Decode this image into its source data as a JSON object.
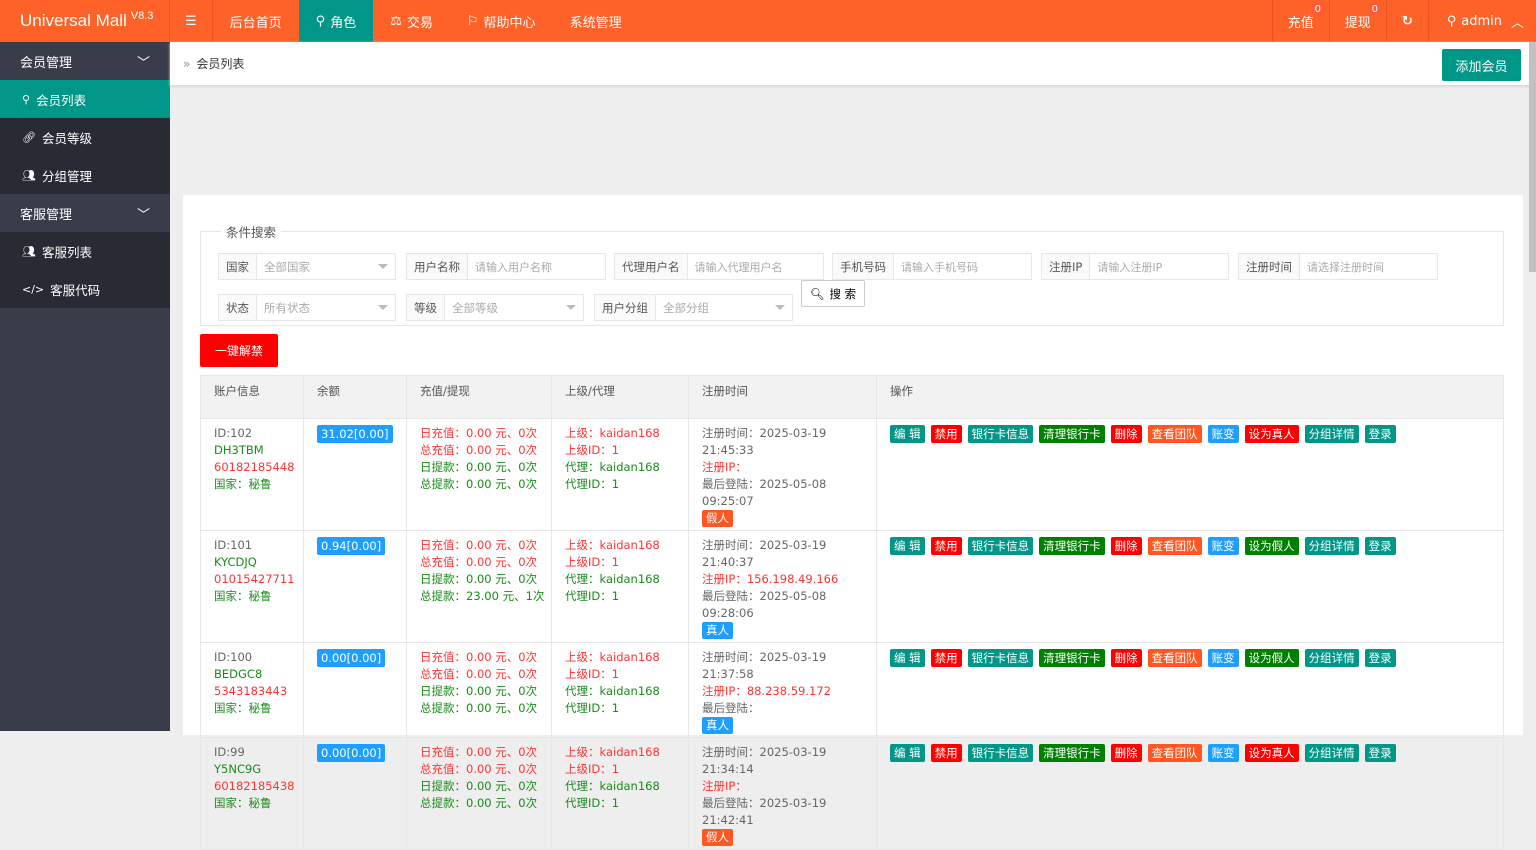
{
  "app": {
    "title": "Universal Mall",
    "version": "V8.3"
  },
  "nav": [
    {
      "label": "后台首页",
      "icon": ""
    },
    {
      "label": "角色",
      "icon": "user-icon",
      "active": true
    },
    {
      "label": "交易",
      "icon": "scale-icon"
    },
    {
      "label": "帮助中心",
      "icon": "flag-icon"
    },
    {
      "label": "系统管理",
      "icon": ""
    }
  ],
  "topright": {
    "recharge": "充值",
    "recharge_count": "0",
    "withdraw": "提现",
    "withdraw_count": "0",
    "user": "admin"
  },
  "sidebar": {
    "groups": [
      {
        "label": "会员管理",
        "items": [
          {
            "label": "会员列表",
            "icon": "user-icon",
            "active": true
          },
          {
            "label": "会员等级",
            "icon": "link-icon"
          },
          {
            "label": "分组管理",
            "icon": "users-icon"
          }
        ]
      },
      {
        "label": "客服管理",
        "items": [
          {
            "label": "客服列表",
            "icon": "users-icon"
          },
          {
            "label": "客服代码",
            "icon": "code-icon"
          }
        ]
      }
    ]
  },
  "breadcrumb": "会员列表",
  "add_member": "添加会员",
  "search": {
    "legend": "条件搜索",
    "fields": [
      {
        "label": "国家",
        "value": "全部国家",
        "type": "select"
      },
      {
        "label": "用户名称",
        "placeholder": "请输入用户名称"
      },
      {
        "label": "代理用户名",
        "placeholder": "请输入代理用户名"
      },
      {
        "label": "手机号码",
        "placeholder": "请输入手机号码"
      },
      {
        "label": "注册IP",
        "placeholder": "请输入注册IP"
      },
      {
        "label": "注册时间",
        "placeholder": "请选择注册时间"
      },
      {
        "label": "状态",
        "value": "所有状态",
        "type": "select"
      },
      {
        "label": "等级",
        "value": "全部等级",
        "type": "select"
      },
      {
        "label": "用户分组",
        "value": "全部分组",
        "type": "select"
      }
    ],
    "button": "搜 索"
  },
  "unban_all": "一键解禁",
  "table": {
    "headers": [
      "账户信息",
      "余额",
      "充值/提现",
      "上级/代理",
      "注册时间",
      "操作"
    ],
    "rows": [
      {
        "id": "ID:102",
        "name": "DH3TBM",
        "phone": "60182185448",
        "country": "国家：秘鲁",
        "balance": "31.02[0.00]",
        "day_recharge": "日充值：0.00 元、0次",
        "total_recharge": "总充值：0.00 元、0次",
        "day_withdraw": "日提款：0.00 元、0次",
        "total_withdraw": "总提款：0.00 元、0次",
        "parent": "上级：kaidan168",
        "parent_id": "上级ID：1",
        "agent": "代理：kaidan168",
        "agent_id": "代理ID：1",
        "reg_time": "注册时间：2025-03-19 21:45:33",
        "reg_ip": "注册IP：",
        "last_login": "最后登陆：2025-05-08 09:25:07",
        "tag": "假人",
        "tag_color": "#ff5722",
        "toggle": "设为真人",
        "toggle_color": "#ff0000"
      },
      {
        "id": "ID:101",
        "name": "KYCDJQ",
        "phone": "01015427711",
        "country": "国家：秘鲁",
        "balance": "0.94[0.00]",
        "day_recharge": "日充值：0.00 元、0次",
        "total_recharge": "总充值：0.00 元、0次",
        "day_withdraw": "日提款：0.00 元、0次",
        "total_withdraw": "总提款：23.00 元、1次",
        "parent": "上级：kaidan168",
        "parent_id": "上级ID：1",
        "agent": "代理：kaidan168",
        "agent_id": "代理ID：1",
        "reg_time": "注册时间：2025-03-19 21:40:37",
        "reg_ip": "注册IP：156.198.49.166",
        "last_login": "最后登陆：2025-05-08 09:28:06",
        "tag": "真人",
        "tag_color": "#1e9fff",
        "toggle": "设为假人",
        "toggle_color": "#008000"
      },
      {
        "id": "ID:100",
        "name": "BEDGC8",
        "phone": "5343183443",
        "country": "国家：秘鲁",
        "balance": "0.00[0.00]",
        "day_recharge": "日充值：0.00 元、0次",
        "total_recharge": "总充值：0.00 元、0次",
        "day_withdraw": "日提款：0.00 元、0次",
        "total_withdraw": "总提款：0.00 元、0次",
        "parent": "上级：kaidan168",
        "parent_id": "上级ID：1",
        "agent": "代理：kaidan168",
        "agent_id": "代理ID：1",
        "reg_time": "注册时间：2025-03-19 21:37:58",
        "reg_ip": "注册IP：88.238.59.172",
        "last_login": "最后登陆：",
        "tag": "真人",
        "tag_color": "#1e9fff",
        "toggle": "设为假人",
        "toggle_color": "#008000"
      },
      {
        "id": "ID:99",
        "name": "Y5NC9G",
        "phone": "60182185438",
        "country": "国家：秘鲁",
        "balance": "0.00[0.00]",
        "day_recharge": "日充值：0.00 元、0次",
        "total_recharge": "总充值：0.00 元、0次",
        "day_withdraw": "日提款：0.00 元、0次",
        "total_withdraw": "总提款：0.00 元、0次",
        "parent": "上级：kaidan168",
        "parent_id": "上级ID：1",
        "agent": "代理：kaidan168",
        "agent_id": "代理ID：1",
        "reg_time": "注册时间：2025-03-19 21:34:14",
        "reg_ip": "注册IP：",
        "last_login": "最后登陆：2025-03-19 21:42:41",
        "tag": "假人",
        "tag_color": "#ff5722",
        "toggle": "设为真人",
        "toggle_color": "#ff0000"
      }
    ],
    "actions": [
      {
        "label": "编 辑",
        "color": "#009688"
      },
      {
        "label": "禁用",
        "color": "#ff0000"
      },
      {
        "label": "银行卡信息",
        "color": "#009688"
      },
      {
        "label": "清理银行卡",
        "color": "#008000"
      },
      {
        "label": "删除",
        "color": "#ff0000"
      },
      {
        "label": "查看团队",
        "color": "#ff5722"
      },
      {
        "label": "账变",
        "color": "#1e9fff"
      },
      {
        "label": "TOGGLE"
      },
      {
        "label": "分组详情",
        "color": "#009688"
      },
      {
        "label": "登录",
        "color": "#009688"
      }
    ]
  },
  "colors": {
    "header": "#ff6228",
    "accent": "#009688",
    "sidebar": "#393d49"
  }
}
